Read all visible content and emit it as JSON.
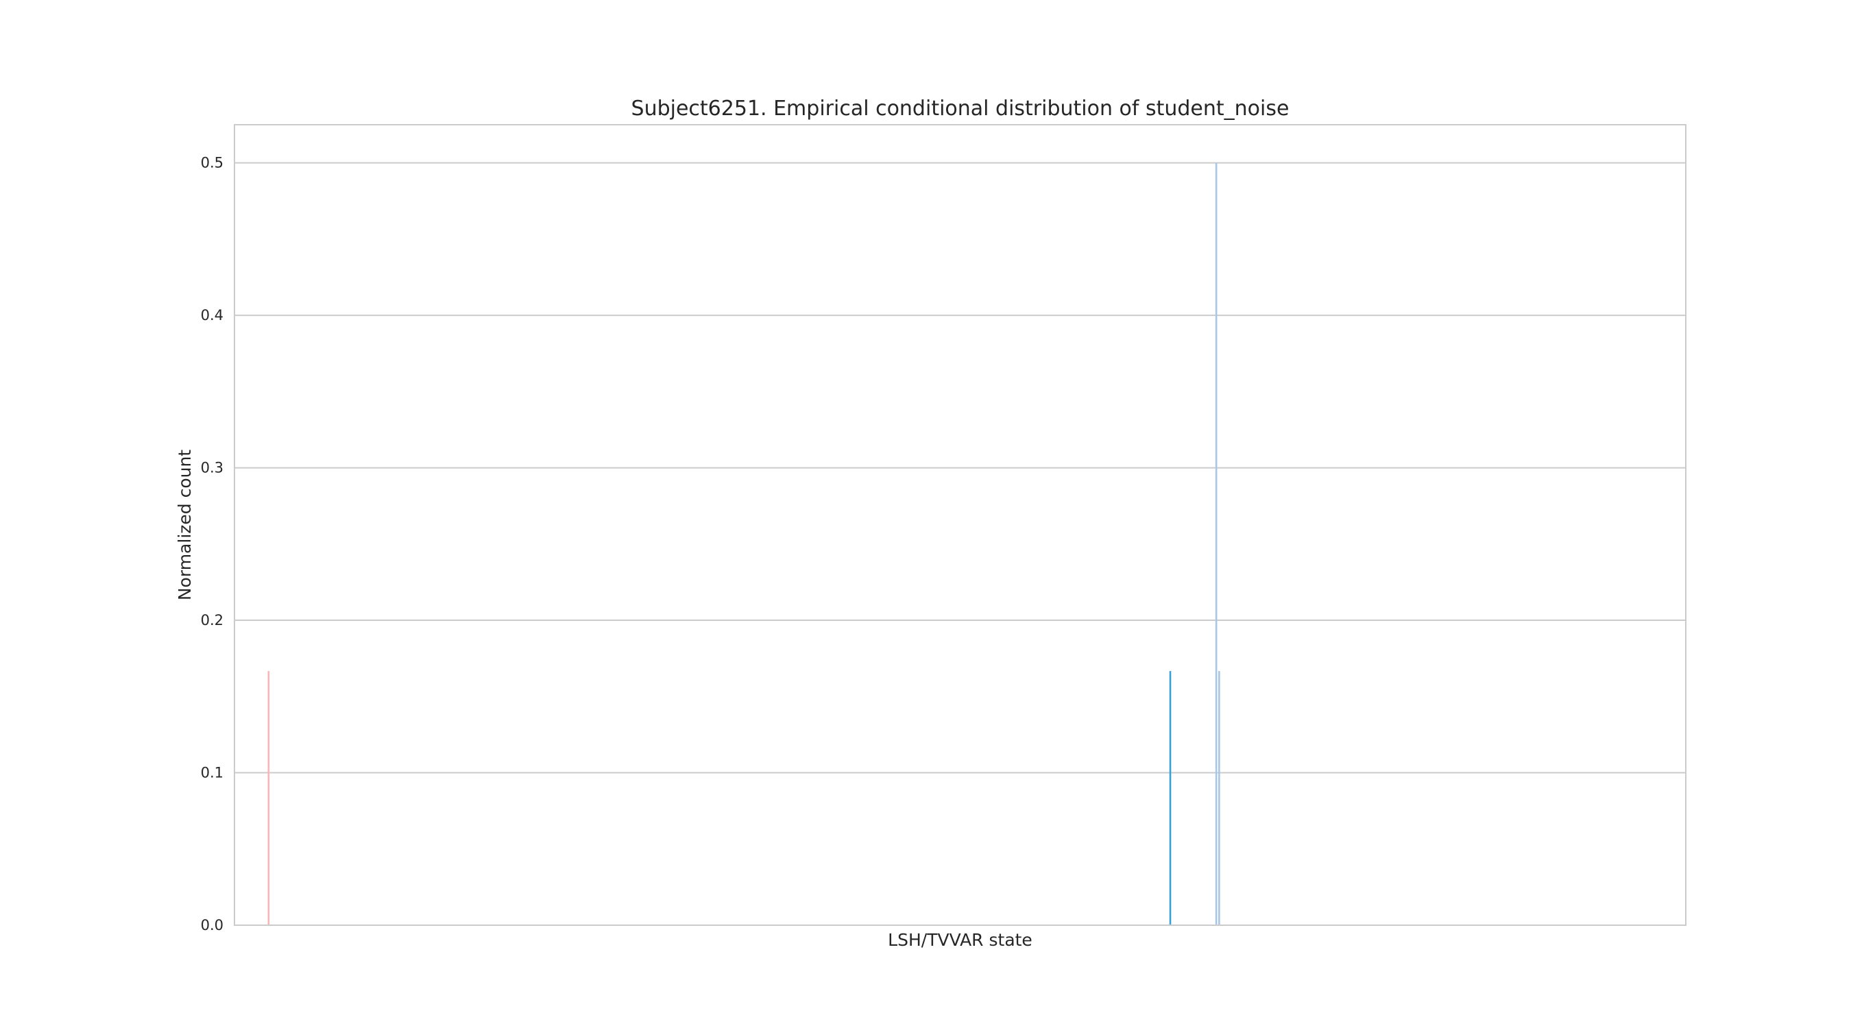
{
  "chart_data": {
    "type": "bar",
    "title": "Subject6251. Empirical conditional distribution of student_noise",
    "xlabel": "LSH/TVVAR state",
    "ylabel": "Normalized count",
    "ylim": [
      0,
      0.525
    ],
    "yticks": [
      0.0,
      0.1,
      0.2,
      0.3,
      0.4,
      0.5
    ],
    "ytick_labels": [
      "0.0",
      "0.1",
      "0.2",
      "0.3",
      "0.4",
      "0.5"
    ],
    "xlim": [
      0,
      1000
    ],
    "grid": true,
    "x_ticks_shown": false,
    "bars": [
      {
        "x": 23.5,
        "value": 0.1667,
        "color": "#ffb3b3"
      },
      {
        "x": 644.8,
        "value": 0.1667,
        "color": "#3a9fd6"
      },
      {
        "x": 676.5,
        "value": 0.5,
        "color": "#a8c6e6"
      },
      {
        "x": 678.5,
        "value": 0.1667,
        "color": "#a8c6e6"
      }
    ],
    "colors": {
      "grid": "#cbcbcb",
      "frame": "#cbcbcb",
      "text": "#262626"
    }
  }
}
